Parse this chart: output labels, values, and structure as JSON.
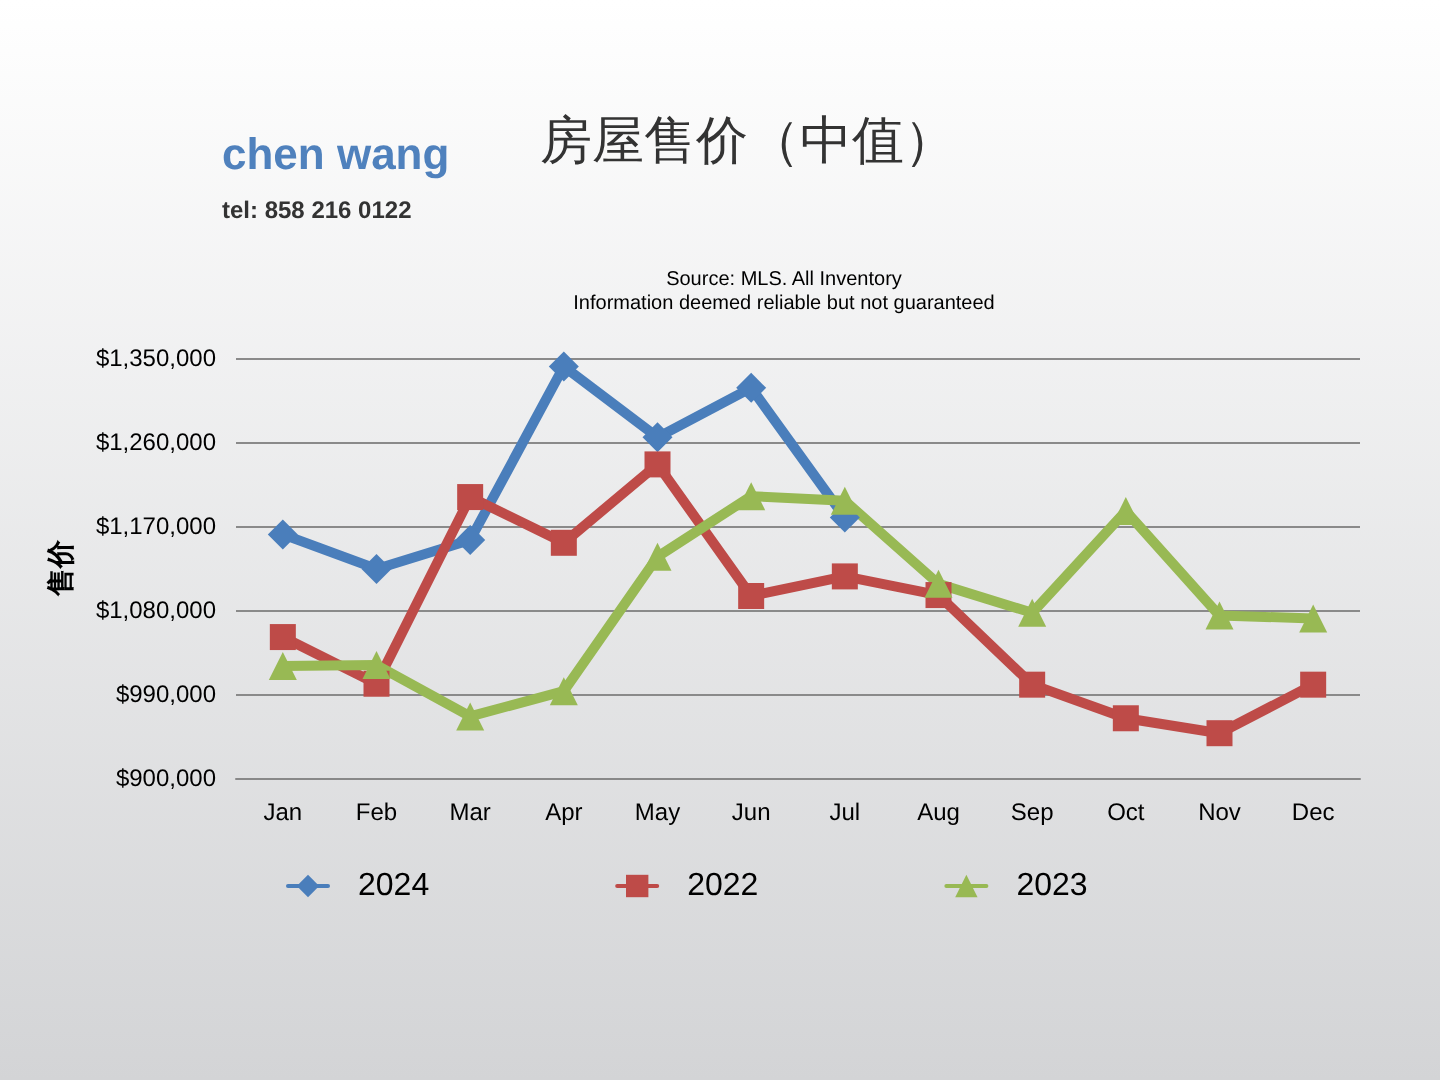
{
  "chart_data": {
    "type": "line",
    "title": "房屋售价（中值）",
    "ylabel": "售价",
    "annotations": [
      "chen wang",
      "tel: 858 216 0122",
      "Source: MLS. All Inventory",
      "Information deemed reliable but not guaranteed"
    ],
    "categories": [
      "Jan",
      "Feb",
      "Mar",
      "Apr",
      "May",
      "Jun",
      "Jul",
      "Aug",
      "Sep",
      "Oct",
      "Nov",
      "Dec"
    ],
    "series": [
      {
        "name": "2024",
        "color": "#4a7ebb",
        "marker": "diamond",
        "values": [
          1161000,
          1124000,
          1155000,
          1341000,
          1265000,
          1318000,
          1179000,
          null,
          null,
          null,
          null,
          null
        ]
      },
      {
        "name": "2022",
        "color": "#be4b48",
        "marker": "square",
        "values": [
          1051000,
          1001000,
          1201000,
          1152000,
          1236000,
          1095000,
          1116000,
          1096000,
          1000000,
          964000,
          948000,
          1000000
        ]
      },
      {
        "name": "2023",
        "color": "#98b954",
        "marker": "triangle",
        "values": [
          1020000,
          1021000,
          966000,
          993000,
          1137000,
          1202000,
          1197000,
          1108000,
          1077000,
          1186000,
          1074000,
          1071000
        ]
      }
    ],
    "ylim": [
      900000,
      1350000
    ],
    "yticks": [
      {
        "value": 900000,
        "label": "$900,000"
      },
      {
        "value": 990000,
        "label": "$990,000"
      },
      {
        "value": 1080000,
        "label": "$1,080,000"
      },
      {
        "value": 1170000,
        "label": "$1,170,000"
      },
      {
        "value": 1260000,
        "label": "$1,260,000"
      },
      {
        "value": 1350000,
        "label": "$1,350,000"
      }
    ],
    "grid": "y",
    "legend": "bottom",
    "line_style": "solid"
  }
}
